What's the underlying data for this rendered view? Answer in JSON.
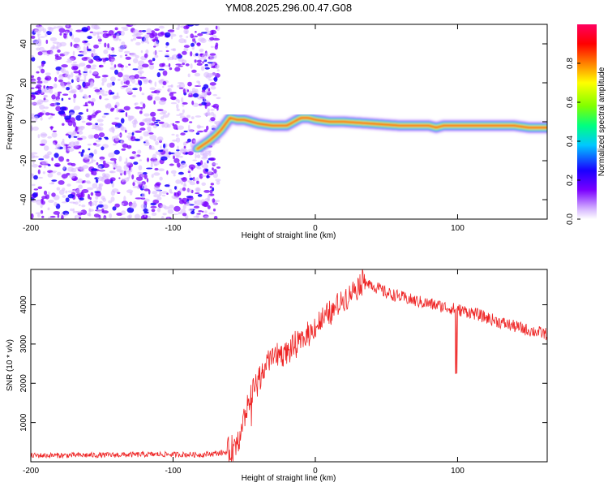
{
  "title": "YM08.2025.296.00.47.G08",
  "chart_data": [
    {
      "type": "heatmap",
      "title": "YM08.2025.296.00.47.G08",
      "xlabel": "Height of straight line (km)",
      "ylabel": "Frequency (Hz)",
      "xlim": [
        -200,
        163
      ],
      "ylim": [
        -50,
        50
      ],
      "xticks": [
        -200,
        -100,
        0,
        100
      ],
      "yticks": [
        -40,
        -20,
        0,
        20,
        40
      ],
      "noise_region_x": [
        -200,
        -68
      ],
      "signal_track": {
        "x": [
          -83,
          -75,
          -70,
          -66,
          -63,
          -60,
          -55,
          -50,
          -45,
          -40,
          -30,
          -20,
          -15,
          -10,
          -5,
          0,
          10,
          20,
          40,
          60,
          80,
          85,
          90,
          100,
          120,
          140,
          150,
          163
        ],
        "y": [
          -14,
          -10,
          -7,
          -4,
          -1,
          2,
          1,
          1,
          0,
          -1,
          -2,
          -2,
          0,
          2,
          2,
          1,
          0,
          0,
          -1,
          -2,
          -2,
          -3,
          -2,
          -2,
          -2,
          -2,
          -3,
          -3
        ]
      },
      "colorbar": {
        "label": "Normalized spectral amplitude",
        "range": [
          0.0,
          1.0
        ],
        "ticks": [
          "0.0",
          "0.2",
          "0.4",
          "0.6",
          "0.8"
        ],
        "colors": [
          "#ffffff",
          "#d7b8ff",
          "#7a00ff",
          "#1a00ff",
          "#00c8ff",
          "#00ff80",
          "#80ff00",
          "#ffff00",
          "#ff8000",
          "#ff0000",
          "#ff0060"
        ]
      }
    },
    {
      "type": "line",
      "xlabel": "Height of straight line (km)",
      "ylabel": "SNR (10 * v/v)",
      "xlim": [
        -200,
        163
      ],
      "ylim": [
        0,
        4900
      ],
      "xticks": [
        -200,
        -100,
        0,
        100
      ],
      "yticks": [
        1000,
        2000,
        3000,
        4000
      ],
      "series": [
        {
          "name": "SNR",
          "color": "#ee2222",
          "x": [
            -200,
            -150,
            -110,
            -80,
            -60,
            -55,
            -50,
            -45,
            -40,
            -35,
            -30,
            -20,
            -10,
            0,
            10,
            20,
            30,
            35,
            40,
            50,
            70,
            90,
            110,
            130,
            150,
            163
          ],
          "y": [
            160,
            170,
            190,
            180,
            250,
            500,
            1100,
            1700,
            2100,
            2450,
            2700,
            2800,
            3050,
            3450,
            3750,
            4150,
            4500,
            4650,
            4500,
            4300,
            4100,
            3950,
            3800,
            3550,
            3350,
            3250
          ]
        }
      ]
    }
  ]
}
